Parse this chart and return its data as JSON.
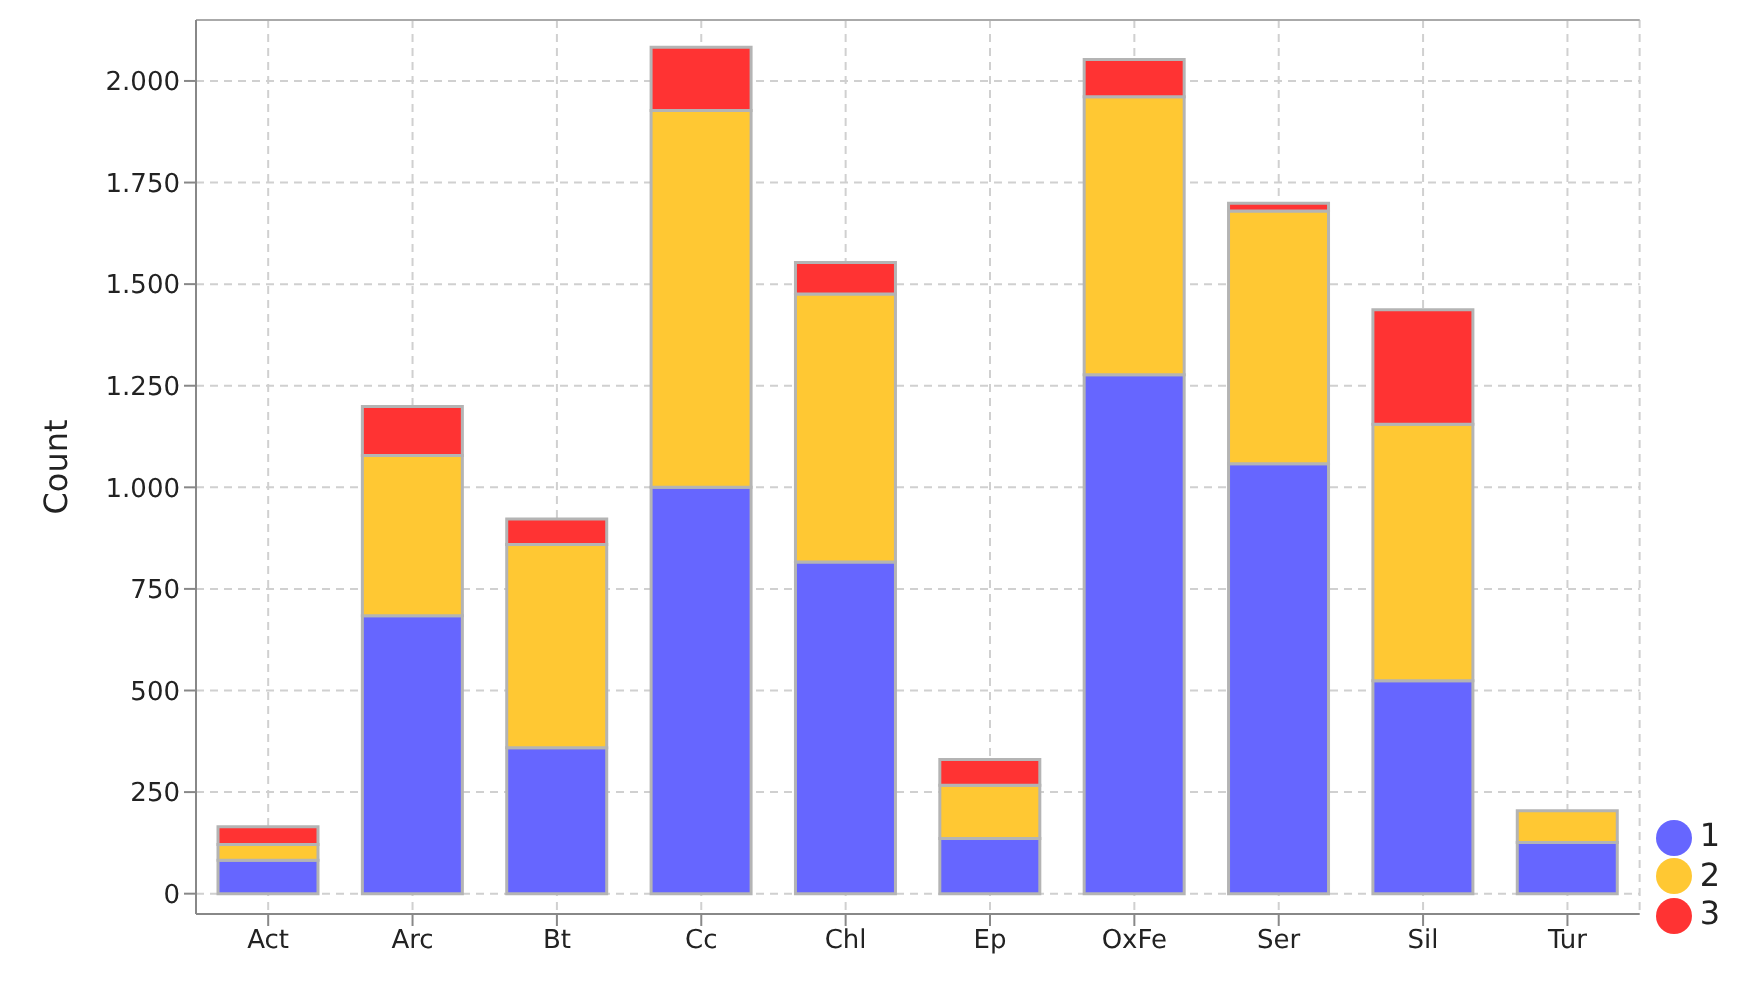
{
  "chart_data": {
    "type": "bar",
    "stacked": true,
    "ylabel": "Count",
    "categories": [
      "Act",
      "Arc",
      "Bt",
      "Cc",
      "Chl",
      "Ep",
      "OxFe",
      "Ser",
      "Sil",
      "Tur"
    ],
    "series": [
      {
        "name": "1",
        "color": "#6666ff",
        "values": [
          82,
          684,
          359,
          1000,
          816,
          136,
          1277,
          1058,
          524,
          126
        ]
      },
      {
        "name": "2",
        "color": "#ffc833",
        "values": [
          39,
          394,
          500,
          927,
          660,
          131,
          684,
          622,
          631,
          78
        ]
      },
      {
        "name": "3",
        "color": "#ff3333",
        "values": [
          44,
          121,
          63,
          156,
          77,
          63,
          92,
          19,
          282,
          0
        ]
      }
    ],
    "ylim": [
      -50,
      2150
    ],
    "yticks": [
      {
        "value": 0,
        "label": "0"
      },
      {
        "value": 250,
        "label": "250"
      },
      {
        "value": 500,
        "label": "500"
      },
      {
        "value": 750,
        "label": "750"
      },
      {
        "value": 1000,
        "label": "1.000"
      },
      {
        "value": 1250,
        "label": "1.250"
      },
      {
        "value": 1500,
        "label": "1.500"
      },
      {
        "value": 1750,
        "label": "1.750"
      },
      {
        "value": 2000,
        "label": "2.000"
      }
    ],
    "grid": true,
    "legend": "bottom right",
    "marker": "circle"
  }
}
